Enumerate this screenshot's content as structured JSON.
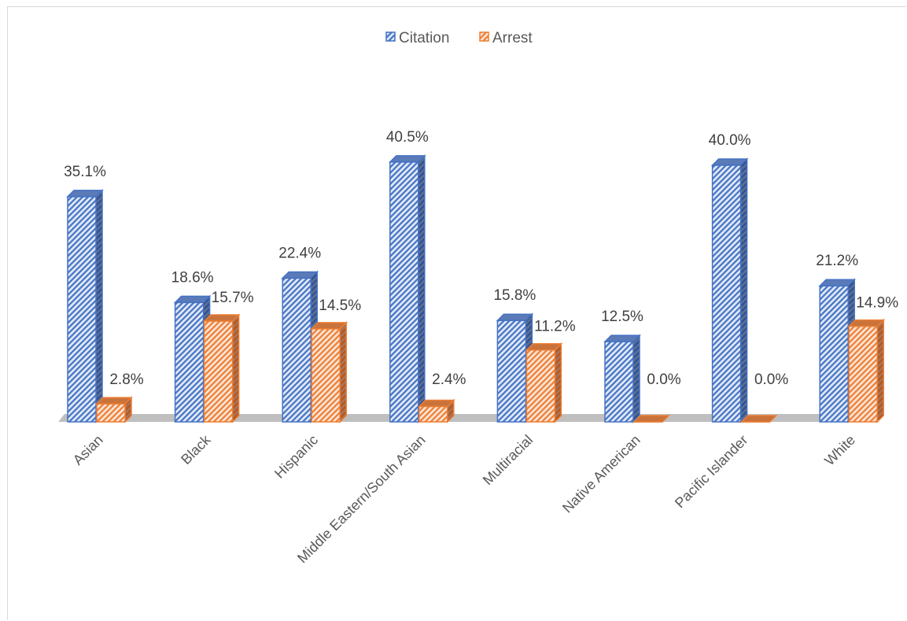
{
  "chart_data": {
    "type": "bar",
    "title": "",
    "xlabel": "",
    "ylabel": "",
    "ylim": [
      0,
      45
    ],
    "legend_position": "top-center",
    "grid": false,
    "style": "3d-clustered-column-patterned",
    "categories": [
      "Asian",
      "Black",
      "Hispanic",
      "Middle Eastern/South Asian",
      "Multiracial",
      "Native American",
      "Pacific Islander",
      "White"
    ],
    "series": [
      {
        "name": "Citation",
        "color": "#4472C4",
        "values": [
          35.1,
          18.6,
          22.4,
          40.5,
          15.8,
          12.5,
          40.0,
          21.2
        ],
        "labels": [
          "35.1%",
          "18.6%",
          "22.4%",
          "40.5%",
          "15.8%",
          "12.5%",
          "40.0%",
          "21.2%"
        ]
      },
      {
        "name": "Arrest",
        "color": "#ED7D31",
        "values": [
          2.8,
          15.7,
          14.5,
          2.4,
          11.2,
          0.0,
          0.0,
          14.9
        ],
        "labels": [
          "2.8%",
          "15.7%",
          "14.5%",
          "2.4%",
          "11.2%",
          "0.0%",
          "0.0%",
          "14.9%"
        ]
      }
    ]
  }
}
